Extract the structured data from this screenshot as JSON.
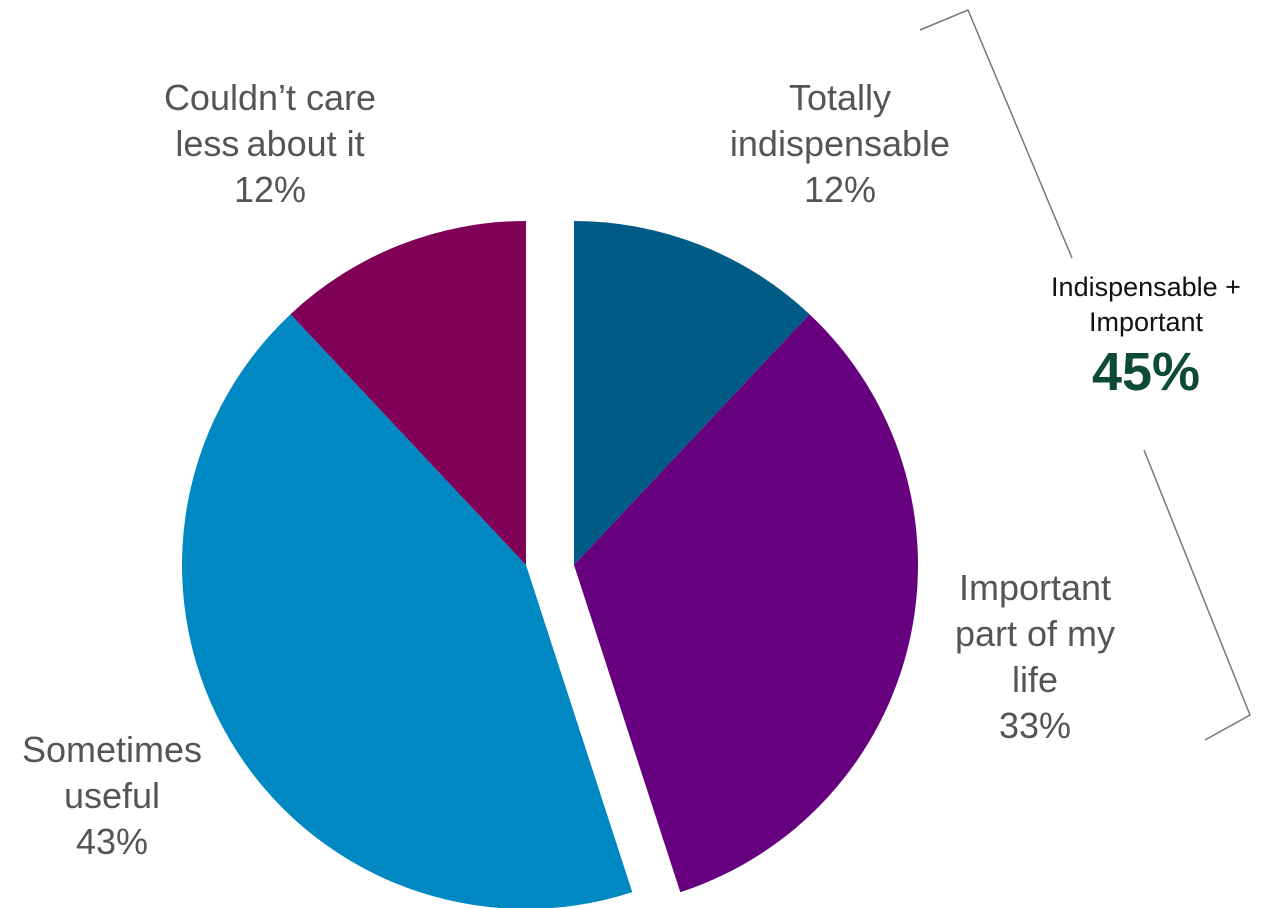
{
  "chart_data": {
    "type": "pie",
    "slices": [
      {
        "label_lines": [
          "Totally",
          "indispensable"
        ],
        "value": 12,
        "value_label": "12%",
        "color": "#005c84"
      },
      {
        "label_lines": [
          "Important",
          "part of my",
          "life"
        ],
        "value": 33,
        "value_label": "33%",
        "color": "#66007f"
      },
      {
        "label_lines": [
          "Sometimes",
          "useful"
        ],
        "value": 43,
        "value_label": "43%",
        "color": "#0088c2"
      },
      {
        "label_lines": [
          "Couldn’t care",
          "less about it"
        ],
        "value": 12,
        "value_label": "12%",
        "color": "#800057"
      }
    ],
    "annotation": {
      "lines": [
        "Indispensable +",
        "Important"
      ],
      "value_label": "45%",
      "value_color": "#0e4a38"
    }
  }
}
